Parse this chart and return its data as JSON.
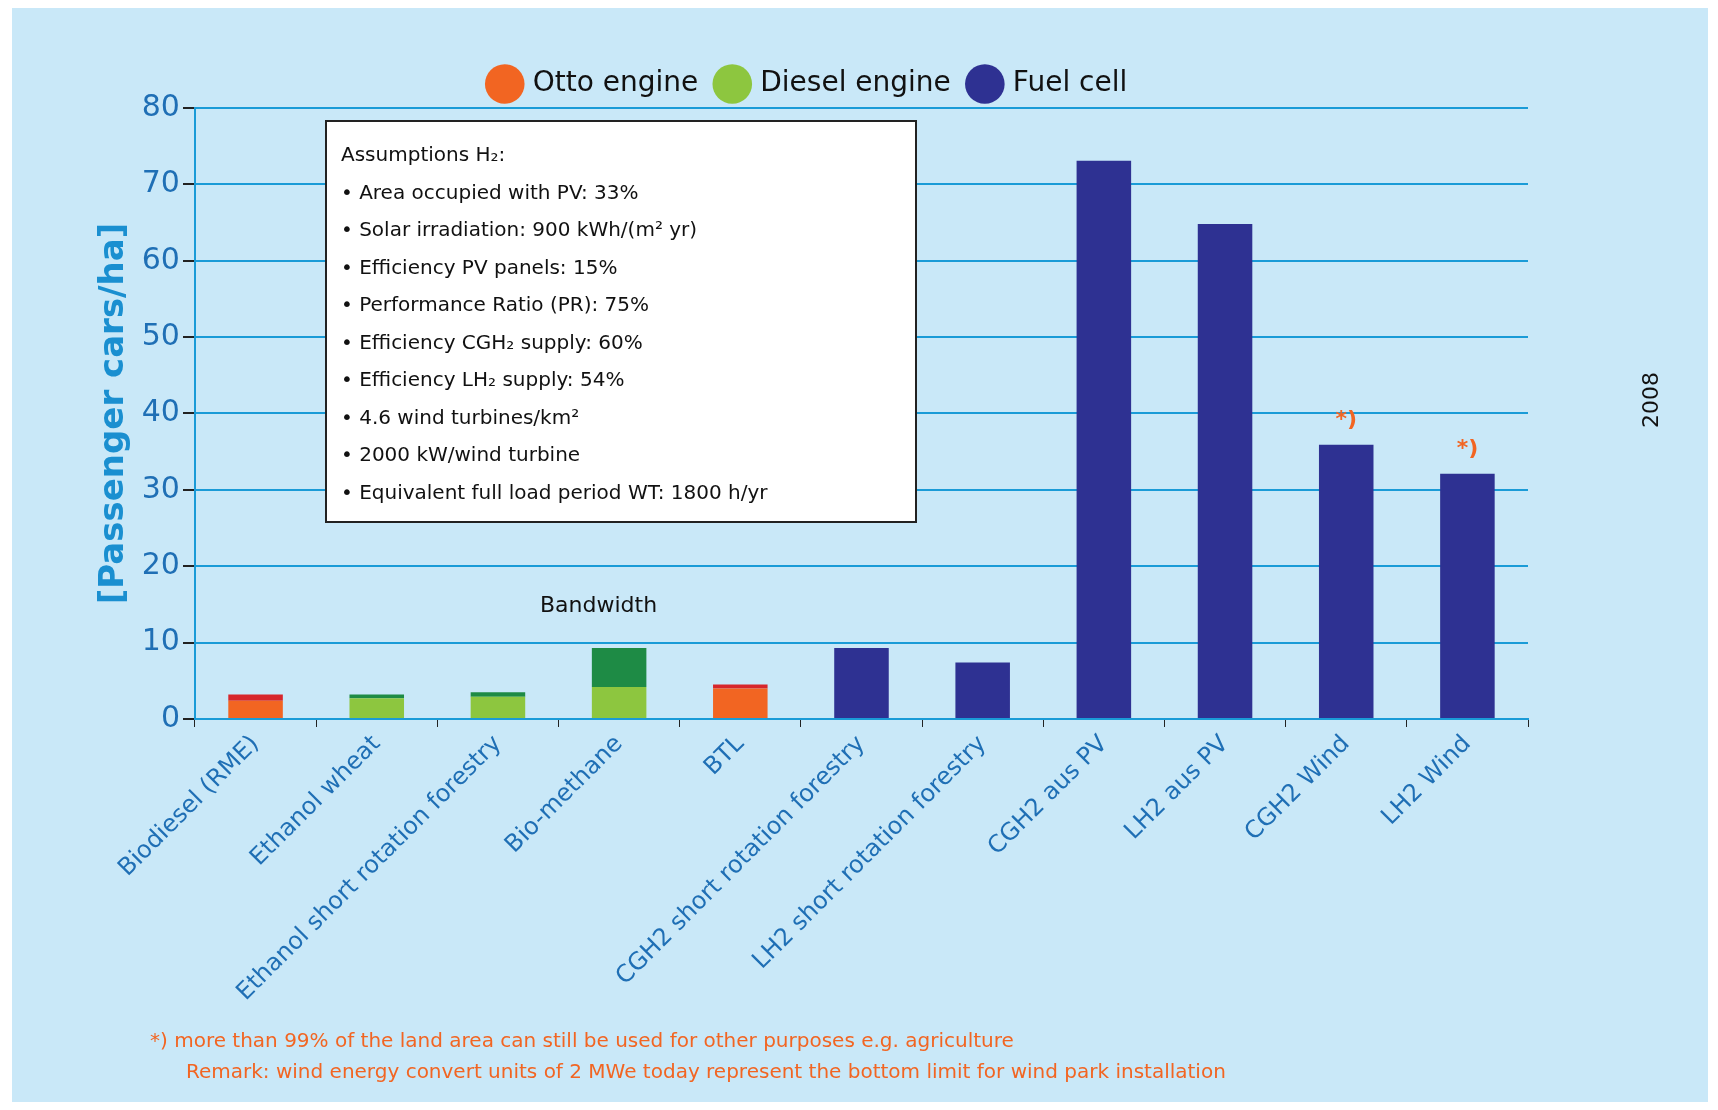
{
  "chart_data": {
    "type": "bar",
    "stacked": true,
    "ylabel": "[Passenger cars/ha]",
    "categories": [
      "Biodiesel (RME)",
      "Ethanol wheat",
      "Ethanol short rotation forestry",
      "Bio-methane",
      "BTL",
      "CGH2 short rotation forestry",
      "LH2 short rotation forestry",
      "CGH2 aus PV",
      "LH2 aus PV",
      "CGH2 Wind",
      "LH2 Wind"
    ],
    "series": [
      {
        "name": "Otto engine",
        "color": "#f26522",
        "values": [
          2.4,
          null,
          null,
          null,
          4.0,
          null,
          null,
          null,
          null,
          null,
          null
        ]
      },
      {
        "name": "Diesel engine",
        "color": "#8dc63f",
        "values": [
          null,
          2.7,
          2.9,
          4.2,
          null,
          null,
          null,
          null,
          null,
          null,
          null
        ]
      },
      {
        "name": "Fuel cell",
        "color": "#2e3192",
        "values": [
          null,
          null,
          null,
          null,
          null,
          9.3,
          7.4,
          73.1,
          64.8,
          35.9,
          32.1
        ]
      },
      {
        "colors": [
          "#d7262b",
          "#1e8b45",
          "#1e8b45",
          "#1e8b45",
          "#d7262b",
          null,
          null,
          null,
          null,
          null,
          null
        ],
        "values": [
          0.8,
          0.5,
          0.6,
          5.1,
          0.5,
          null,
          null,
          null,
          null,
          null,
          null
        ]
      }
    ],
    "ylim": [
      0,
      80
    ],
    "yticks": [
      0,
      10,
      20,
      30,
      40,
      50,
      60,
      70,
      80
    ],
    "grid": "y",
    "legend": "top",
    "annotations": [
      "Assumptions H₂:\n• Area occupied with PV: 33%\n• Solar irradiation: 900 kWh/(m² yr)\n• Efficiency PV panels: 15%\n• Performance Ratio (PR): 75%\n• Efficiency CGH₂ supply: 60%\n• Efficiency LH₂ supply: 54%\n• 4.6 wind turbines/km²\n• 2000 kW/wind turbine\n• Equivalent full load period WT: 1800 h/yr",
      "Bandwidth",
      {
        "text": "*)",
        "x": "CGH2 Wind",
        "y": 35.9
      },
      {
        "text": "*)",
        "x": "LH2 Wind",
        "y": 32.1
      },
      "*) more than 99% of the land area can still be used for other purposes e.g. agriculture",
      "Remark: wind energy convert units of 2 MWe today represent the bottom limit for wind park installation",
      "2008"
    ]
  }
}
